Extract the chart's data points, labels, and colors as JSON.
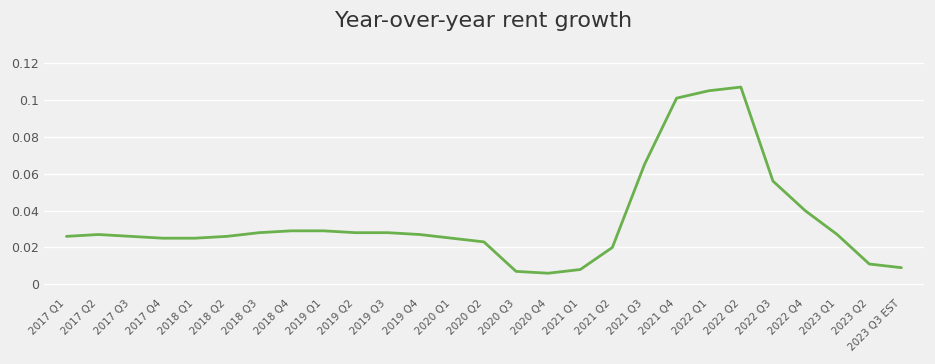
{
  "title": "Year-over-year rent growth",
  "title_fontsize": 16,
  "line_color": "#6ab04c",
  "line_width": 2.0,
  "background_color": "#f0f0f0",
  "grid_color": "#ffffff",
  "ylim": [
    -0.005,
    0.132
  ],
  "yticks": [
    0,
    0.02,
    0.04,
    0.06,
    0.08,
    0.1,
    0.12
  ],
  "labels": [
    "2017 Q1",
    "2017 Q2",
    "2017 Q3",
    "2017 Q4",
    "2018 Q1",
    "2018 Q2",
    "2018 Q3",
    "2018 Q4",
    "2019 Q1",
    "2019 Q2",
    "2019 Q3",
    "2019 Q4",
    "2020 Q1",
    "2020 Q2",
    "2020 Q3",
    "2020 Q4",
    "2021 Q1",
    "2021 Q2",
    "2021 Q3",
    "2021 Q4",
    "2022 Q1",
    "2022 Q2",
    "2022 Q3",
    "2022 Q4",
    "2023 Q1",
    "2023 Q2",
    "2023 Q3 EST"
  ],
  "values": [
    0.026,
    0.027,
    0.026,
    0.025,
    0.025,
    0.026,
    0.028,
    0.029,
    0.029,
    0.028,
    0.028,
    0.027,
    0.025,
    0.023,
    0.007,
    0.006,
    0.008,
    0.02,
    0.065,
    0.101,
    0.105,
    0.107,
    0.056,
    0.04,
    0.027,
    0.011,
    0.009
  ]
}
